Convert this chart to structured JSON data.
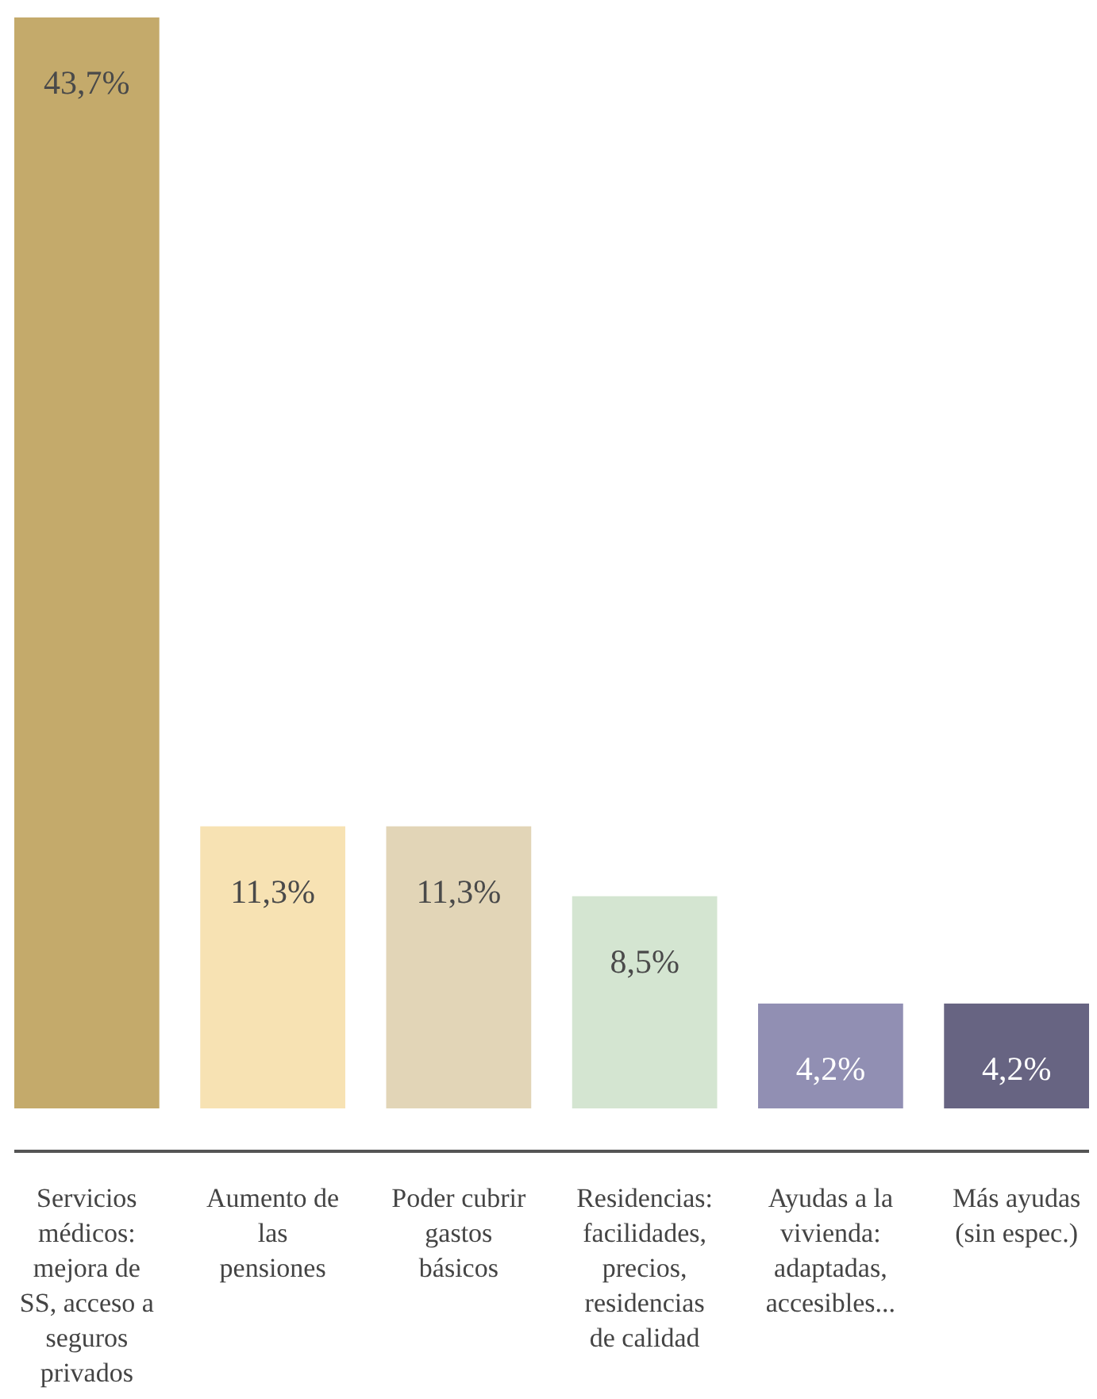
{
  "chart_data": {
    "type": "bar",
    "categories": [
      "Servicios médicos: mejora de SS, acceso a seguros privados",
      "Aumento de las pensiones",
      "Poder cubrir gastos básicos",
      "Residencias: facilidades, precios, residencias de calidad",
      "Ayudas a la vivienda: adaptadas, accesibles...",
      "Más ayudas (sin espec.)"
    ],
    "values": [
      43.7,
      11.3,
      11.3,
      8.5,
      4.2,
      4.2
    ],
    "colors": [
      "#c4aa6b",
      "#f7e2b3",
      "#e2d5b7",
      "#d4e5d1",
      "#918fb3",
      "#676482"
    ],
    "value_labels": [
      "43,7%",
      "11,3%",
      "11,3%",
      "8,5%",
      "4,2%",
      "4,2%"
    ]
  }
}
